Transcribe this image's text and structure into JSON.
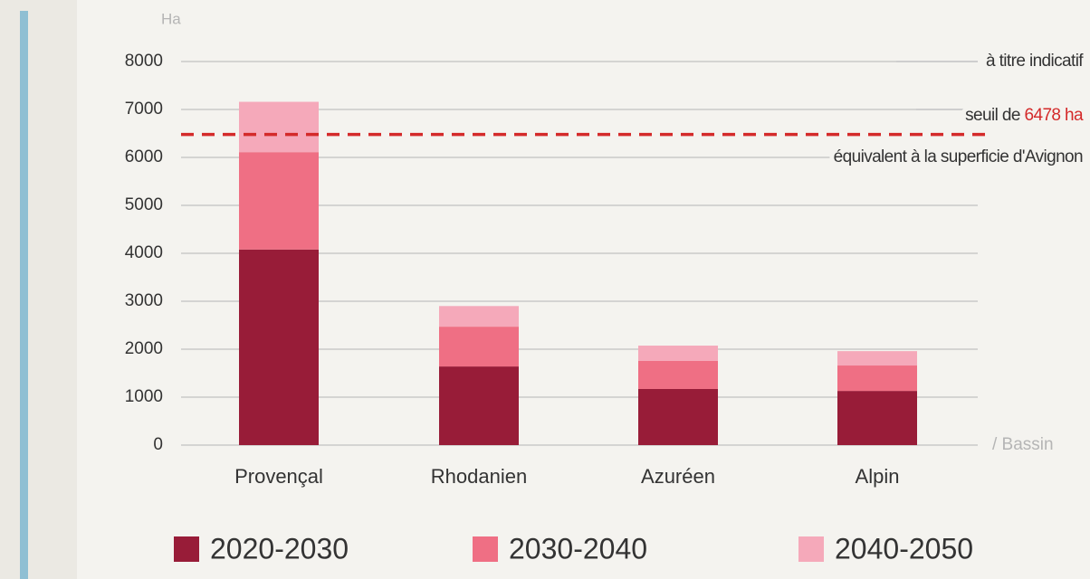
{
  "chart_data": {
    "type": "stacked_bar",
    "y_label": "Ha",
    "x_label": "/ Bassin",
    "categories": [
      "Provençal",
      "Rhodanien",
      "Azuréen",
      "Alpin"
    ],
    "series": [
      {
        "name": "2020-2030",
        "color": "#981c38",
        "values": [
          4080,
          1640,
          1170,
          1130
        ]
      },
      {
        "name": "2030-2040",
        "color": "#ef6f84",
        "values": [
          2030,
          830,
          585,
          530
        ]
      },
      {
        "name": "2040-2050",
        "color": "#f5a9ba",
        "values": [
          1050,
          430,
          320,
          300
        ]
      }
    ],
    "ylim": [
      0,
      8000
    ],
    "yticks": [
      0,
      1000,
      2000,
      3000,
      4000,
      5000,
      6000,
      7000,
      8000
    ],
    "grid": true,
    "threshold": {
      "value": 6478,
      "label": "6478 ha",
      "color": "#d42a2a"
    },
    "annotations": [
      "à titre indicatif",
      "seuil de",
      "équivalent à la superficie d'Avignon"
    ]
  }
}
